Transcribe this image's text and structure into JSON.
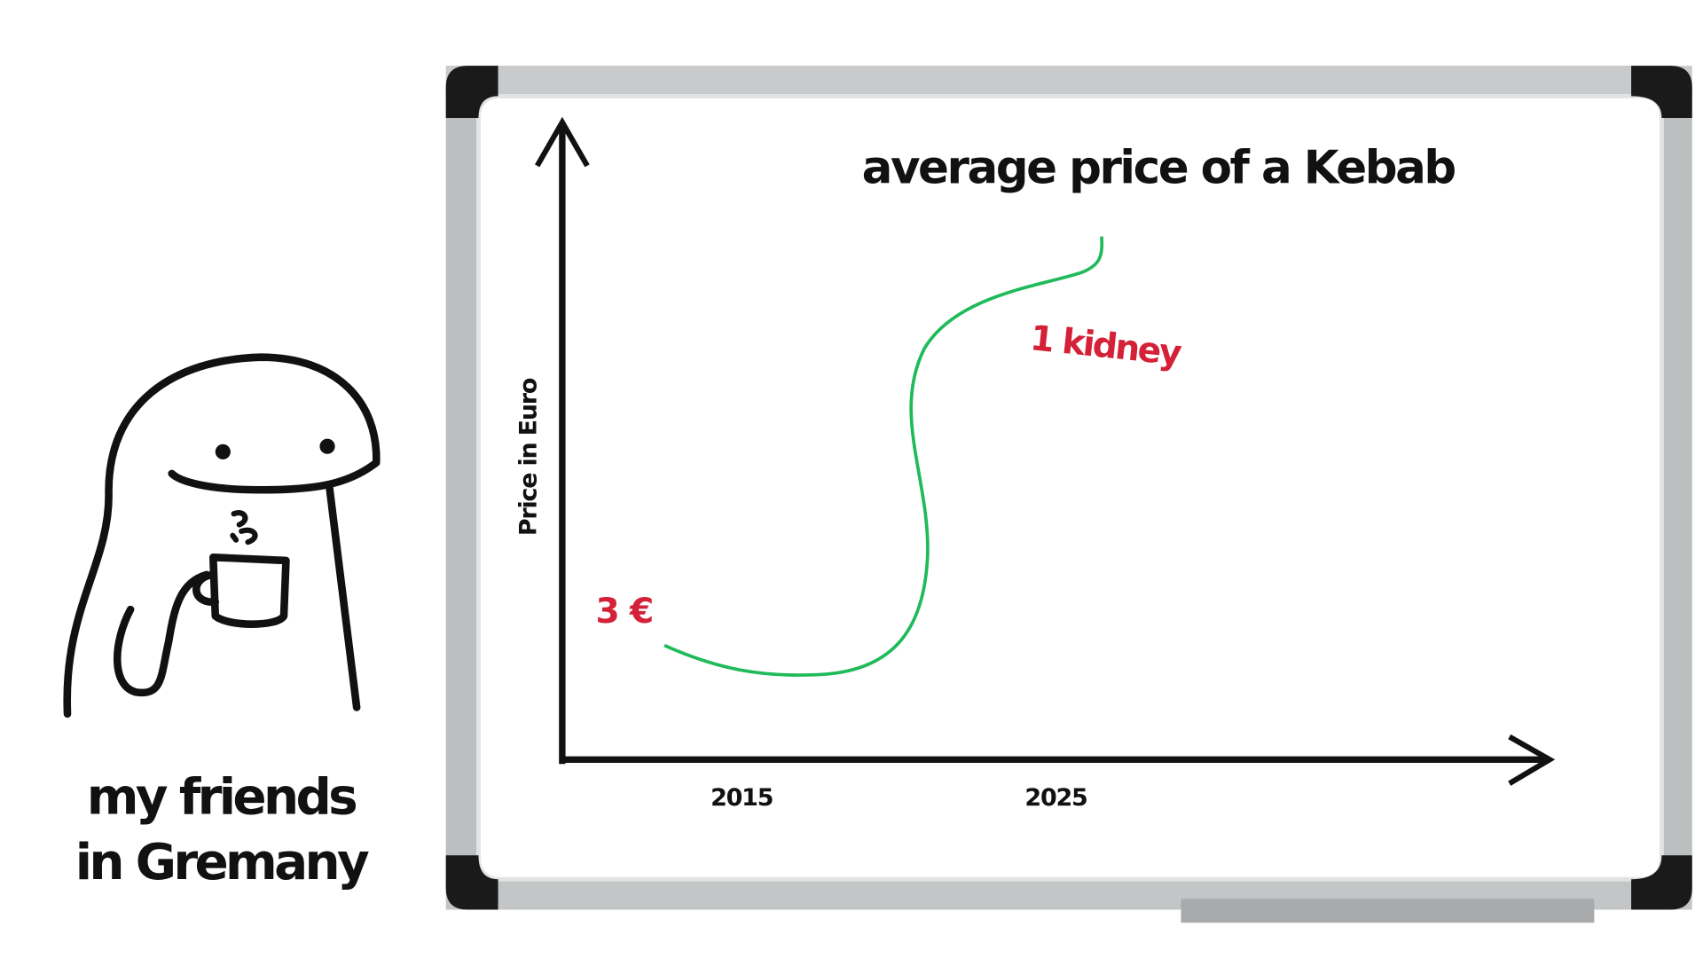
{
  "whiteboard": {
    "title": "average price of a Kebab",
    "y_axis_label": "Price in Euro",
    "x_labels": [
      "2015",
      "2025"
    ],
    "annotations": [
      "3 €",
      "1 kidney"
    ]
  },
  "caption": {
    "lines": [
      "my friends",
      "in Gremany"
    ]
  }
}
